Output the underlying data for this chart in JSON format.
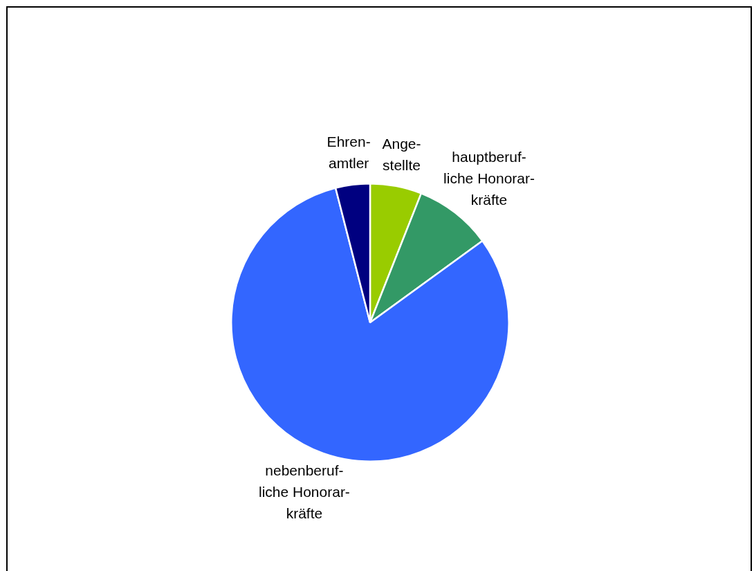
{
  "chart_data": {
    "type": "pie",
    "categories": [
      "Ange-\nstellte",
      "hauptberuf-\nliche Honorar-\nkräfte",
      "nebenberuf-\nliche Honorar-\nkräfte",
      "Ehren-\namtler"
    ],
    "values": [
      6,
      9,
      81,
      4
    ],
    "colors": [
      "#99cc00",
      "#339966",
      "#3366ff",
      "#000080"
    ],
    "legend": false
  }
}
